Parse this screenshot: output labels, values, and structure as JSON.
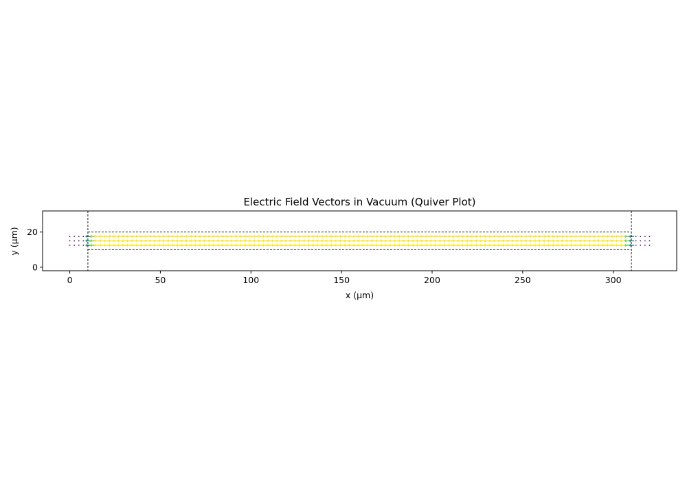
{
  "chart_data": {
    "type": "quiver",
    "title": "Electric Field Vectors in Vacuum (Quiver Plot)",
    "xlabel": "x (µm)",
    "ylabel": "y (µm)",
    "xlim": [
      -15,
      335
    ],
    "ylim": [
      -2,
      32
    ],
    "xticks": [
      0,
      50,
      100,
      150,
      200,
      250,
      300
    ],
    "yticks": [
      0,
      20
    ],
    "grid": false,
    "colormap": "viridis",
    "boundary_lines": {
      "vertical_x": [
        10,
        310
      ],
      "horizontal_y": [
        10,
        20
      ],
      "style": "dashed",
      "color": "#000000"
    },
    "grid_points": {
      "x_start": 0,
      "x_end": 320,
      "x_step": 2.5,
      "y": [
        12.5,
        15,
        17.5
      ]
    },
    "field_region": {
      "x_range": [
        10,
        310
      ],
      "y_range": [
        10,
        20
      ],
      "direction": "-x",
      "magnitude_inside": 1.0,
      "magnitude_outside": 0.0
    }
  }
}
